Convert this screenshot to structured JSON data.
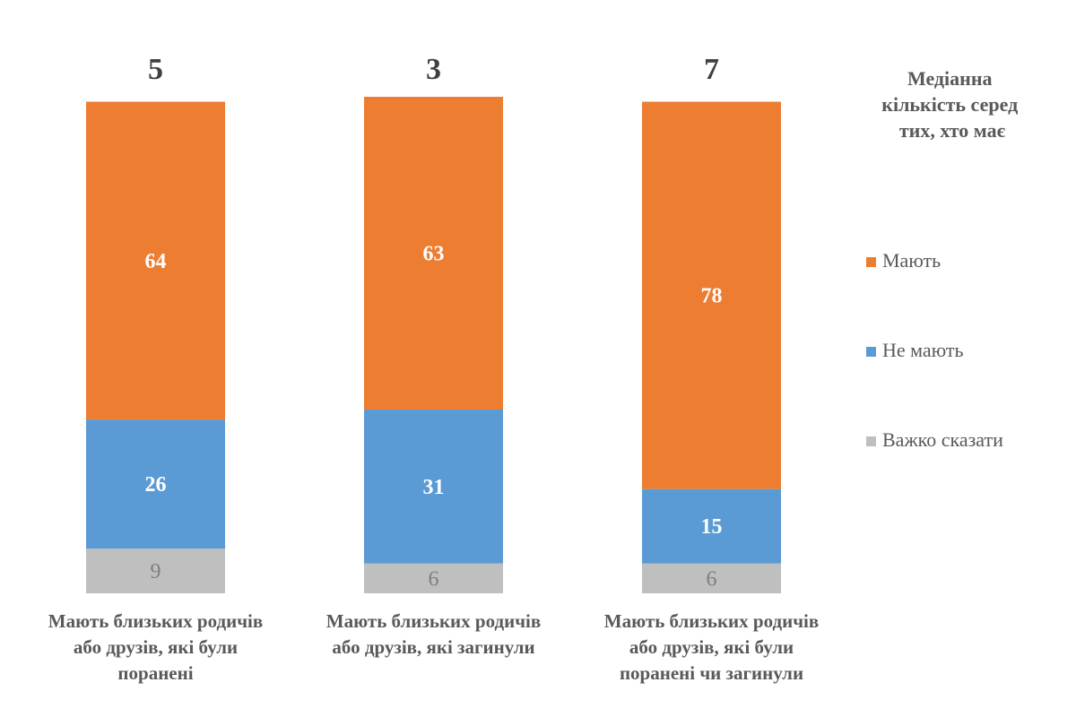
{
  "chart_data": {
    "type": "bar",
    "stacked": true,
    "orientation": "vertical",
    "categories": [
      [
        "Мають близьких родичів",
        "або друзів, які були",
        "поранені"
      ],
      [
        "Мають близьких родичів",
        "або друзів, які загинули"
      ],
      [
        "Мають близьких родичів",
        "або друзів, які були",
        "поранені чи загинули"
      ]
    ],
    "series": [
      {
        "name": "Важко сказати",
        "color": "#bfbfbf",
        "values": [
          9,
          6,
          6
        ]
      },
      {
        "name": "Не мають",
        "color": "#5b9bd5",
        "values": [
          26,
          31,
          15
        ]
      },
      {
        "name": "Мають",
        "color": "#ed7d31",
        "values": [
          64,
          63,
          78
        ]
      }
    ],
    "medians": [
      5,
      3,
      7
    ],
    "median_title": [
      "Медіанна",
      "кількість серед",
      "тих, хто має"
    ],
    "legend": {
      "placement": "right",
      "order": [
        "Мають",
        "Не мають",
        "Важко сказати"
      ]
    },
    "axes_visible": false,
    "grid": false,
    "ylim": [
      0,
      100
    ]
  }
}
